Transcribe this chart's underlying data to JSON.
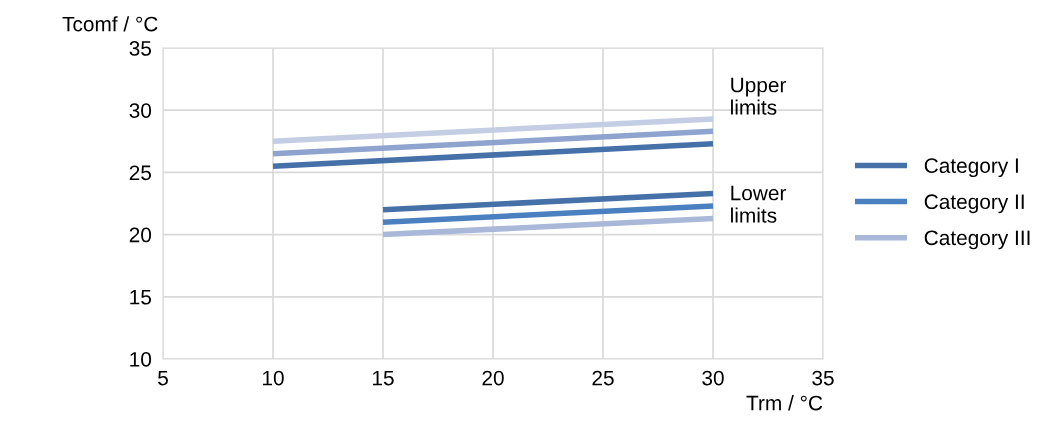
{
  "chart_data": {
    "type": "line",
    "xlabel": "Trm / °C",
    "ylabel": "Tcomf / °C",
    "xlim": [
      5,
      35
    ],
    "xticks": [
      5,
      10,
      15,
      20,
      25,
      30,
      35
    ],
    "ylim": [
      10,
      35
    ],
    "yticks": [
      10,
      15,
      20,
      25,
      30,
      35
    ],
    "grid": true,
    "legend": "right",
    "marker": "none",
    "line_style": "solid",
    "series": [
      {
        "color": "#4670a8",
        "x": [
          10,
          30
        ],
        "values": [
          25.5,
          27.3
        ]
      },
      {
        "color": "#8ea3cd",
        "x": [
          10,
          30
        ],
        "values": [
          26.5,
          28.3
        ]
      },
      {
        "color": "#c3cde3",
        "x": [
          10,
          30
        ],
        "values": [
          27.5,
          29.3
        ]
      },
      {
        "name": "Category I",
        "color": "#4670a8",
        "x": [
          15,
          30
        ],
        "values": [
          22,
          23.3
        ]
      },
      {
        "name": "Category II",
        "color": "#4a7fc0",
        "x": [
          15,
          30
        ],
        "values": [
          21,
          22.3
        ]
      },
      {
        "name": "Category III",
        "color": "#a9b8d8",
        "x": [
          15,
          30
        ],
        "values": [
          20,
          21.3
        ]
      }
    ],
    "annotations": [
      {
        "text": "Upper\nlimits",
        "x": 30,
        "y": 29.3
      },
      {
        "text": "Lower\nlimits",
        "x": 30,
        "y": 22.3
      }
    ]
  }
}
